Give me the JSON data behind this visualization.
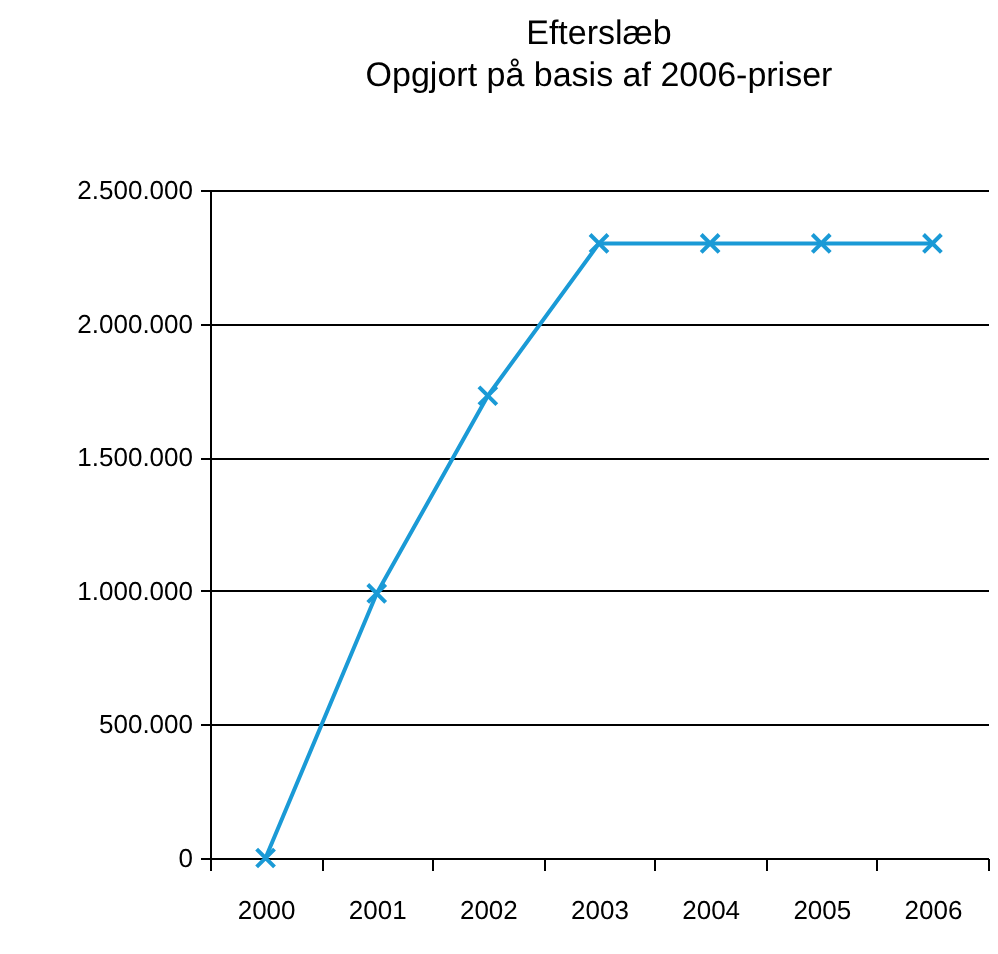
{
  "chart_data": {
    "type": "line",
    "title": "Efterslæb",
    "subtitle": "Opgjort på basis af 2006-priser",
    "categories": [
      "2000",
      "2001",
      "2002",
      "2003",
      "2004",
      "2005",
      "2006"
    ],
    "series": [
      {
        "color": "#1a9ad6",
        "values": [
          0,
          990000,
          1730000,
          2300000,
          2300000,
          2300000,
          2300000
        ]
      }
    ],
    "ylim": [
      0,
      2500000
    ],
    "yticks": [
      {
        "value": 0,
        "label": "0"
      },
      {
        "value": 500000,
        "label": "500.000"
      },
      {
        "value": 1000000,
        "label": "1.000.000"
      },
      {
        "value": 1500000,
        "label": "1.500.000"
      },
      {
        "value": 2000000,
        "label": "2.000.000"
      },
      {
        "value": 2500000,
        "label": "2.500.000"
      }
    ],
    "grid": "y",
    "marker": "cross",
    "line_style": "solid"
  }
}
